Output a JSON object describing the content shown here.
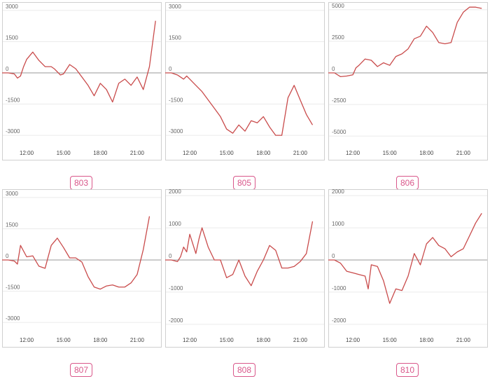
{
  "line_color": "#c94b4b",
  "badge_color": "#d9578a",
  "chart_data": [
    {
      "type": "line",
      "title": "803",
      "x_ticks": [
        "12:00",
        "15:00",
        "18:00",
        "21:00"
      ],
      "x_range": [
        "10:00",
        "23:00"
      ],
      "ylim": [
        -3400,
        3400
      ],
      "y_ticks": [
        3000,
        1500,
        0,
        -1500,
        -3000
      ],
      "grid": true,
      "x": [
        "10:00",
        "10:30",
        "11:00",
        "11:15",
        "11:30",
        "11:45",
        "12:00",
        "12:30",
        "13:00",
        "13:30",
        "14:00",
        "14:15",
        "14:45",
        "15:00",
        "15:30",
        "16:00",
        "16:30",
        "17:00",
        "17:30",
        "18:00",
        "18:30",
        "19:00",
        "19:30",
        "20:00",
        "20:30",
        "21:00",
        "21:30",
        "22:00",
        "22:30"
      ],
      "y": [
        0,
        0,
        -50,
        -250,
        -150,
        300,
        650,
        1000,
        600,
        300,
        300,
        200,
        -100,
        -50,
        400,
        200,
        -200,
        -600,
        -1100,
        -500,
        -800,
        -1400,
        -500,
        -300,
        -600,
        -200,
        -800,
        300,
        2500
      ]
    },
    {
      "type": "line",
      "title": "805",
      "x_ticks": [
        "12:00",
        "15:00",
        "18:00",
        "21:00"
      ],
      "x_range": [
        "10:00",
        "23:00"
      ],
      "ylim": [
        -3400,
        3400
      ],
      "y_ticks": [
        3000,
        1500,
        0,
        -1500,
        -3000
      ],
      "grid": true,
      "x": [
        "10:00",
        "10:30",
        "11:00",
        "11:30",
        "11:45",
        "12:00",
        "12:30",
        "13:00",
        "13:30",
        "14:00",
        "14:30",
        "15:00",
        "15:30",
        "16:00",
        "16:30",
        "17:00",
        "17:30",
        "18:00",
        "18:30",
        "19:00",
        "19:30",
        "20:00",
        "20:30",
        "21:00",
        "21:30",
        "22:00"
      ],
      "y": [
        0,
        0,
        -100,
        -300,
        -150,
        -300,
        -600,
        -900,
        -1300,
        -1700,
        -2100,
        -2700,
        -2900,
        -2500,
        -2800,
        -2300,
        -2400,
        -2100,
        -2600,
        -3000,
        -3000,
        -1200,
        -600,
        -1300,
        -2000,
        -2500
      ]
    },
    {
      "type": "line",
      "title": "806",
      "x_ticks": [
        "12:00",
        "15:00",
        "18:00",
        "21:00"
      ],
      "x_range": [
        "10:00",
        "23:00"
      ],
      "ylim": [
        -5600,
        5600
      ],
      "y_ticks": [
        5000,
        2500,
        0,
        -2500,
        -5000
      ],
      "grid": true,
      "x": [
        "10:00",
        "10:30",
        "11:00",
        "11:30",
        "12:00",
        "12:15",
        "12:30",
        "13:00",
        "13:30",
        "14:00",
        "14:30",
        "15:00",
        "15:30",
        "16:00",
        "16:30",
        "17:00",
        "17:30",
        "18:00",
        "18:30",
        "19:00",
        "19:30",
        "20:00",
        "20:30",
        "21:00",
        "21:30",
        "22:00",
        "22:30"
      ],
      "y": [
        0,
        0,
        -300,
        -250,
        -150,
        400,
        600,
        1100,
        1000,
        500,
        800,
        600,
        1300,
        1500,
        1900,
        2700,
        2900,
        3700,
        3200,
        2400,
        2300,
        2400,
        4000,
        4800,
        5200,
        5200,
        5100
      ]
    },
    {
      "type": "line",
      "title": "807",
      "x_ticks": [
        "12:00",
        "15:00",
        "18:00",
        "21:00"
      ],
      "x_range": [
        "10:00",
        "23:00"
      ],
      "ylim": [
        -3400,
        3400
      ],
      "y_ticks": [
        3000,
        1500,
        0,
        -1500,
        -3000
      ],
      "grid": true,
      "x": [
        "10:00",
        "10:30",
        "11:00",
        "11:15",
        "11:30",
        "12:00",
        "12:30",
        "13:00",
        "13:30",
        "14:00",
        "14:30",
        "15:00",
        "15:30",
        "16:00",
        "16:30",
        "17:00",
        "17:30",
        "18:00",
        "18:30",
        "19:00",
        "19:30",
        "20:00",
        "20:30",
        "21:00",
        "21:30",
        "22:00"
      ],
      "y": [
        0,
        0,
        -50,
        -200,
        700,
        150,
        200,
        -300,
        -400,
        700,
        1050,
        600,
        100,
        100,
        -100,
        -800,
        -1300,
        -1400,
        -1250,
        -1200,
        -1300,
        -1300,
        -1100,
        -700,
        500,
        2100
      ]
    },
    {
      "type": "line",
      "title": "808",
      "x_ticks": [
        "12:00",
        "15:00",
        "18:00",
        "21:00"
      ],
      "x_range": [
        "10:00",
        "23:00"
      ],
      "ylim": [
        -2200,
        2200
      ],
      "y_ticks": [
        2000,
        1000,
        0,
        -1000,
        -2000
      ],
      "grid": true,
      "x": [
        "10:00",
        "10:30",
        "11:00",
        "11:15",
        "11:30",
        "11:45",
        "12:00",
        "12:30",
        "12:45",
        "13:00",
        "13:30",
        "14:00",
        "14:30",
        "15:00",
        "15:30",
        "16:00",
        "16:30",
        "17:00",
        "17:30",
        "18:00",
        "18:30",
        "19:00",
        "19:30",
        "20:00",
        "20:30",
        "21:00",
        "21:30",
        "22:00"
      ],
      "y": [
        0,
        0,
        -50,
        100,
        400,
        250,
        800,
        200,
        650,
        1000,
        400,
        0,
        0,
        -550,
        -450,
        0,
        -500,
        -800,
        -350,
        0,
        450,
        300,
        -250,
        -250,
        -200,
        -50,
        200,
        1200
      ]
    },
    {
      "type": "line",
      "title": "810",
      "x_ticks": [
        "12:00",
        "15:00",
        "18:00",
        "21:00"
      ],
      "x_range": [
        "10:00",
        "23:00"
      ],
      "ylim": [
        -2200,
        2200
      ],
      "y_ticks": [
        2000,
        1000,
        0,
        -1000,
        -2000
      ],
      "grid": true,
      "x": [
        "10:00",
        "10:30",
        "11:00",
        "11:30",
        "12:00",
        "12:30",
        "13:00",
        "13:15",
        "13:30",
        "14:00",
        "14:30",
        "15:00",
        "15:30",
        "16:00",
        "16:30",
        "17:00",
        "17:30",
        "18:00",
        "18:30",
        "19:00",
        "19:30",
        "20:00",
        "20:30",
        "21:00",
        "21:30",
        "22:00",
        "22:30"
      ],
      "y": [
        0,
        0,
        -100,
        -350,
        -400,
        -450,
        -500,
        -900,
        -150,
        -200,
        -650,
        -1350,
        -900,
        -950,
        -500,
        200,
        -150,
        500,
        700,
        450,
        350,
        100,
        250,
        350,
        750,
        1150,
        1450
      ]
    }
  ]
}
